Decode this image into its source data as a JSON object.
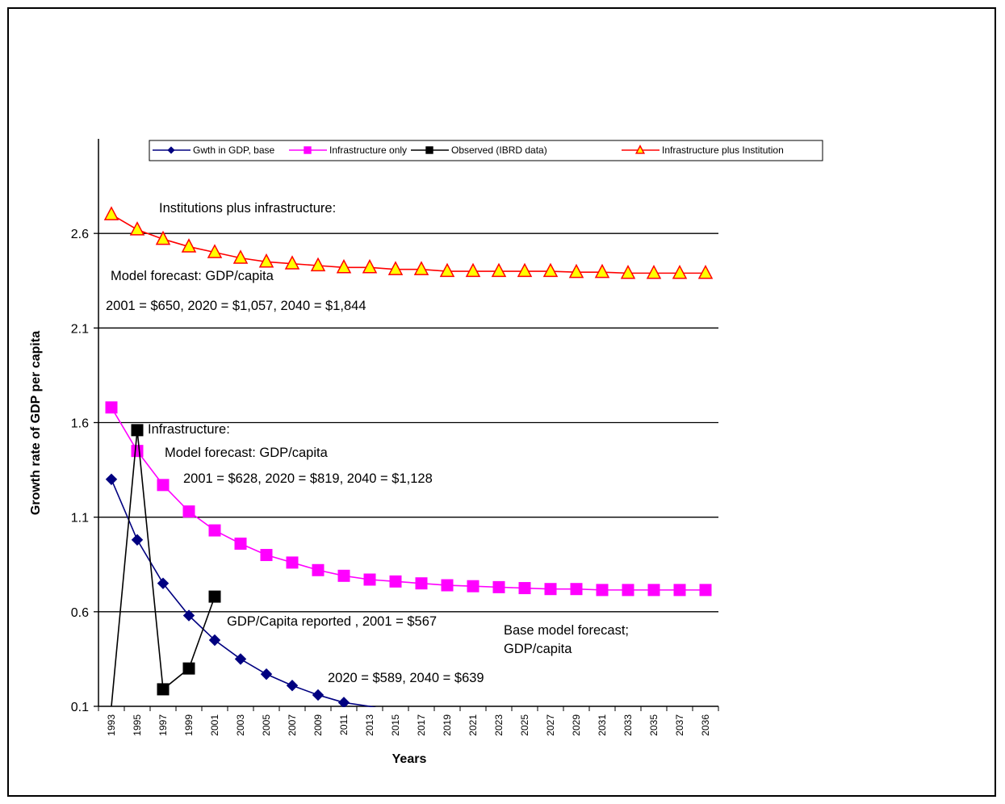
{
  "chart_data": {
    "type": "line",
    "title": "",
    "xlabel": "Years",
    "ylabel": "Growth rate of GDP per capita",
    "ylim": [
      0.1,
      3.1
    ],
    "yticks": [
      "0.1",
      "0.6",
      "1.1",
      "1.6",
      "2.1",
      "2.6"
    ],
    "grid": "horizontal",
    "legend_position": "top",
    "categories": [
      "1993",
      "1995",
      "1997",
      "1999",
      "2001",
      "2003",
      "2005",
      "2007",
      "2009",
      "2011",
      "2013",
      "2015",
      "2017",
      "2019",
      "2021",
      "2023",
      "2025",
      "2027",
      "2029",
      "2031",
      "2033",
      "2035",
      "2037",
      "2036"
    ],
    "series": [
      {
        "name": "Gwth in GDP, base",
        "color": "#000080",
        "marker": "diamond",
        "values": [
          1.3,
          0.98,
          0.75,
          0.58,
          0.45,
          0.35,
          0.27,
          0.21,
          0.16,
          0.12,
          0.1,
          0.07,
          0.05,
          null,
          null,
          null,
          null,
          null,
          null,
          null,
          null,
          null,
          null,
          null
        ]
      },
      {
        "name": "Infrastructure only",
        "color": "#ff00ff",
        "marker": "square",
        "values": [
          1.68,
          1.45,
          1.27,
          1.13,
          1.03,
          0.96,
          0.9,
          0.86,
          0.82,
          0.79,
          0.77,
          0.76,
          0.75,
          0.74,
          0.735,
          0.73,
          0.725,
          0.72,
          0.72,
          0.715,
          0.715,
          0.715,
          0.715,
          0.715
        ]
      },
      {
        "name": "Observed (IBRD data)",
        "color": "#000000",
        "marker": "square",
        "values": [
          0.1,
          1.56,
          0.19,
          0.3,
          0.68,
          null,
          null,
          null,
          null,
          null,
          null,
          null,
          null,
          null,
          null,
          null,
          null,
          null,
          null,
          null,
          null,
          null,
          null,
          null
        ]
      },
      {
        "name": "Infrastructure plus Institution",
        "color": "#ff0000",
        "marker": "triangle",
        "values": [
          2.7,
          2.62,
          2.57,
          2.53,
          2.5,
          2.47,
          2.45,
          2.44,
          2.43,
          2.42,
          2.42,
          2.41,
          2.41,
          2.4,
          2.4,
          2.4,
          2.4,
          2.4,
          2.395,
          2.395,
          2.39,
          2.39,
          2.39,
          2.39
        ]
      }
    ],
    "annotations": [
      "Institutions plus infrastructure:",
      "Model forecast: GDP/capita",
      "2001 = $650, 2020 = $1,057, 2040 = $1,844",
      "Infrastructure:",
      "Model forecast: GDP/capita",
      "2001 = $628, 2020 = $819, 2040 = $1,128",
      "GDP/Capita reported , 2001 = $567",
      "Base model forecast;",
      "GDP/capita",
      "2020 = $589, 2040 = $639"
    ]
  }
}
